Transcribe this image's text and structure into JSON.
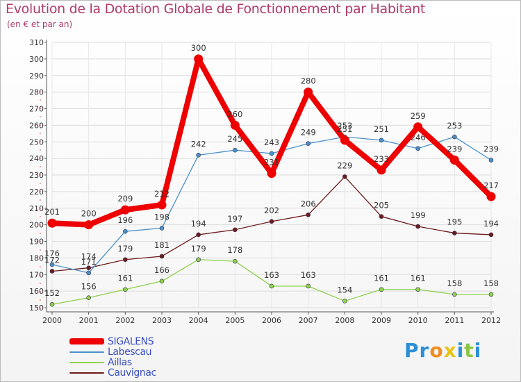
{
  "chart_data": {
    "type": "line",
    "title": "Evolution de la Dotation Globale de Fonctionnement par Habitant",
    "subtitle": "(en € et par an)",
    "x": [
      "2000",
      "2001",
      "2002",
      "2003",
      "2004",
      "2005",
      "2006",
      "2007",
      "2008",
      "2009",
      "2010",
      "2011",
      "2012"
    ],
    "ylim": [
      150,
      310
    ],
    "yticks": [
      150,
      160,
      170,
      180,
      190,
      200,
      210,
      220,
      230,
      240,
      250,
      260,
      270,
      280,
      290,
      300,
      310
    ],
    "series": [
      {
        "name": "SIGALENS",
        "color": "#ee0000",
        "values": [
          201,
          200,
          209,
          212,
          300,
          260,
          231,
          280,
          251,
          233,
          259,
          239,
          217
        ]
      },
      {
        "name": "Labescau",
        "color": "#4a90c8",
        "values": [
          176,
          171,
          196,
          198,
          242,
          245,
          243,
          249,
          253,
          251,
          246,
          253,
          239
        ]
      },
      {
        "name": "Aillas",
        "color": "#8ed14a",
        "values": [
          152,
          156,
          161,
          166,
          179,
          178,
          163,
          163,
          154,
          161,
          161,
          158,
          158
        ]
      },
      {
        "name": "Cauvignac",
        "color": "#6e1a1a",
        "values": [
          172,
          174,
          179,
          181,
          194,
          197,
          202,
          206,
          229,
          205,
          199,
          195,
          194
        ]
      }
    ]
  },
  "logo": {
    "text": "Proxiti",
    "letters": [
      "P",
      "r",
      "o",
      "x",
      "i",
      "t",
      "i"
    ],
    "colors": [
      "#2a8fd6",
      "#2a8fd6",
      "#f28c1e",
      "#e8c41a",
      "#2a8fd6",
      "#8cc63f",
      "#2a8fd6"
    ]
  }
}
